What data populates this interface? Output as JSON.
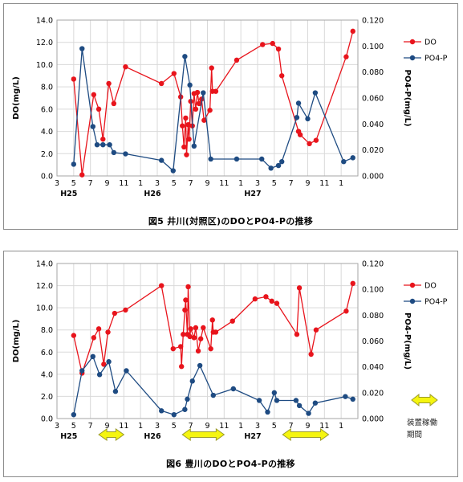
{
  "charts": [
    {
      "caption": "図5  井川(対照区)のDOとPO4-Pの推移",
      "chart_data": {
        "type": "line",
        "ylabel": "DO(mg/L)",
        "y2label": "PO4-P(mg/L)",
        "ylim": [
          0,
          14
        ],
        "y2lim": [
          0,
          0.12
        ],
        "yticks": [
          "0.0",
          "2.0",
          "4.0",
          "6.0",
          "8.0",
          "10.0",
          "12.0",
          "14.0"
        ],
        "y2ticks": [
          "0.000",
          "0.020",
          "0.040",
          "0.060",
          "0.080",
          "0.100",
          "0.120"
        ],
        "xtick_labels": [
          "3",
          "5",
          "7",
          "9",
          "11",
          "1",
          "3",
          "5",
          "7",
          "9",
          "11",
          "1",
          "3",
          "5",
          "7",
          "9",
          "11",
          "1"
        ],
        "era_labels": [
          "H25",
          "H26",
          "H27"
        ],
        "grid": true,
        "legend_position": "right",
        "series": [
          {
            "name": "DO",
            "color": "#e8141c",
            "axis": "left",
            "points": [
              [
                5.0,
                8.7
              ],
              [
                6.0,
                0.1
              ],
              [
                7.4,
                7.3
              ],
              [
                8.0,
                6.0
              ],
              [
                8.5,
                3.3
              ],
              [
                9.2,
                8.3
              ],
              [
                9.8,
                6.5
              ],
              [
                11.2,
                9.8
              ],
              [
                15.5,
                8.3
              ],
              [
                17.0,
                9.2
              ],
              [
                17.8,
                7.1
              ],
              [
                18.0,
                4.5
              ],
              [
                18.2,
                2.6
              ],
              [
                18.4,
                5.2
              ],
              [
                18.5,
                1.9
              ],
              [
                18.7,
                4.6
              ],
              [
                18.8,
                3.3
              ],
              [
                19.0,
                6.7
              ],
              [
                19.2,
                4.5
              ],
              [
                19.4,
                7.4
              ],
              [
                19.6,
                6.0
              ],
              [
                19.8,
                7.5
              ],
              [
                20.0,
                6.5
              ],
              [
                20.3,
                6.9
              ],
              [
                20.6,
                5.0
              ],
              [
                21.3,
                5.9
              ],
              [
                21.5,
                9.7
              ],
              [
                21.6,
                7.6
              ],
              [
                22.0,
                7.6
              ],
              [
                24.5,
                10.4
              ],
              [
                27.6,
                11.8
              ],
              [
                28.8,
                11.9
              ],
              [
                29.5,
                11.4
              ],
              [
                29.9,
                9.0
              ],
              [
                31.9,
                4.0
              ],
              [
                32.1,
                3.7
              ],
              [
                33.2,
                2.9
              ],
              [
                34.0,
                3.2
              ],
              [
                37.6,
                10.7
              ],
              [
                38.4,
                13.0
              ]
            ]
          },
          {
            "name": "PO4-P",
            "color": "#1e4b82",
            "axis": "right",
            "points": [
              [
                5.0,
                0.009
              ],
              [
                6.0,
                0.098
              ],
              [
                7.3,
                0.038
              ],
              [
                7.8,
                0.024
              ],
              [
                8.5,
                0.024
              ],
              [
                9.3,
                0.024
              ],
              [
                9.8,
                0.018
              ],
              [
                11.2,
                0.017
              ],
              [
                15.5,
                0.012
              ],
              [
                16.9,
                0.004
              ],
              [
                18.3,
                0.092
              ],
              [
                18.9,
                0.07
              ],
              [
                19.4,
                0.023
              ],
              [
                20.5,
                0.064
              ],
              [
                21.4,
                0.013
              ],
              [
                24.5,
                0.013
              ],
              [
                27.5,
                0.013
              ],
              [
                28.6,
                0.006
              ],
              [
                29.5,
                0.008
              ],
              [
                29.9,
                0.011
              ],
              [
                31.7,
                0.045
              ],
              [
                31.9,
                0.056
              ],
              [
                33.0,
                0.044
              ],
              [
                33.9,
                0.064
              ],
              [
                37.3,
                0.011
              ],
              [
                38.4,
                0.014
              ]
            ]
          }
        ]
      }
    },
    {
      "caption": "図6  豊川のDOとPO4-Pの推移",
      "note_lines": [
        "装置稼働",
        "期間"
      ],
      "chart_data": {
        "type": "line",
        "ylabel": "DO(mg/L)",
        "y2label": "PO4-P(mg/L)",
        "ylim": [
          0,
          14
        ],
        "y2lim": [
          0,
          0.12
        ],
        "yticks": [
          "0.0",
          "2.0",
          "4.0",
          "6.0",
          "8.0",
          "10.0",
          "12.0",
          "14.0"
        ],
        "y2ticks": [
          "0.000",
          "0.020",
          "0.040",
          "0.060",
          "0.080",
          "0.100",
          "0.120"
        ],
        "xtick_labels": [
          "3",
          "5",
          "7",
          "9",
          "11",
          "1",
          "3",
          "5",
          "7",
          "9",
          "11",
          "1",
          "3",
          "5",
          "7",
          "9",
          "11",
          "1"
        ],
        "era_labels": [
          "H25",
          "H26",
          "H27"
        ],
        "grid": true,
        "legend_position": "right",
        "operation_periods": [
          [
            8.0,
            11.0
          ],
          [
            18.0,
            23.0
          ],
          [
            30.0,
            35.5
          ]
        ],
        "series": [
          {
            "name": "DO",
            "color": "#e8141c",
            "axis": "left",
            "points": [
              [
                5.0,
                7.5
              ],
              [
                6.0,
                4.1
              ],
              [
                7.4,
                7.3
              ],
              [
                8.0,
                8.1
              ],
              [
                8.6,
                4.9
              ],
              [
                9.1,
                7.8
              ],
              [
                9.9,
                9.5
              ],
              [
                11.2,
                9.8
              ],
              [
                15.5,
                12.0
              ],
              [
                16.9,
                6.3
              ],
              [
                17.8,
                6.5
              ],
              [
                17.9,
                4.7
              ],
              [
                18.1,
                7.6
              ],
              [
                18.3,
                9.8
              ],
              [
                18.4,
                10.7
              ],
              [
                18.6,
                7.6
              ],
              [
                18.7,
                11.9
              ],
              [
                18.9,
                7.4
              ],
              [
                19.0,
                8.1
              ],
              [
                19.4,
                7.3
              ],
              [
                19.6,
                8.2
              ],
              [
                19.9,
                6.1
              ],
              [
                20.2,
                7.2
              ],
              [
                20.5,
                8.2
              ],
              [
                21.4,
                6.3
              ],
              [
                21.6,
                8.9
              ],
              [
                21.7,
                7.8
              ],
              [
                22.0,
                7.8
              ],
              [
                24.0,
                8.8
              ],
              [
                26.7,
                10.8
              ],
              [
                28.0,
                11.0
              ],
              [
                28.7,
                10.6
              ],
              [
                29.3,
                10.4
              ],
              [
                31.7,
                7.6
              ],
              [
                32.0,
                11.8
              ],
              [
                33.4,
                5.8
              ],
              [
                34.0,
                8.0
              ],
              [
                37.6,
                9.7
              ],
              [
                38.4,
                12.2
              ]
            ]
          },
          {
            "name": "PO4-P",
            "color": "#1e4b82",
            "axis": "right",
            "points": [
              [
                5.0,
                0.003
              ],
              [
                6.0,
                0.037
              ],
              [
                7.3,
                0.048
              ],
              [
                8.1,
                0.034
              ],
              [
                9.2,
                0.044
              ],
              [
                10.0,
                0.021
              ],
              [
                11.3,
                0.037
              ],
              [
                15.5,
                0.006
              ],
              [
                17.0,
                0.003
              ],
              [
                18.3,
                0.007
              ],
              [
                18.6,
                0.015
              ],
              [
                19.2,
                0.029
              ],
              [
                20.1,
                0.041
              ],
              [
                21.7,
                0.018
              ],
              [
                24.1,
                0.023
              ],
              [
                27.2,
                0.014
              ],
              [
                28.2,
                0.005
              ],
              [
                29.0,
                0.02
              ],
              [
                29.3,
                0.014
              ],
              [
                31.6,
                0.014
              ],
              [
                32.0,
                0.01
              ],
              [
                33.1,
                0.004
              ],
              [
                33.9,
                0.012
              ],
              [
                37.5,
                0.017
              ],
              [
                38.4,
                0.015
              ]
            ]
          }
        ]
      }
    }
  ]
}
